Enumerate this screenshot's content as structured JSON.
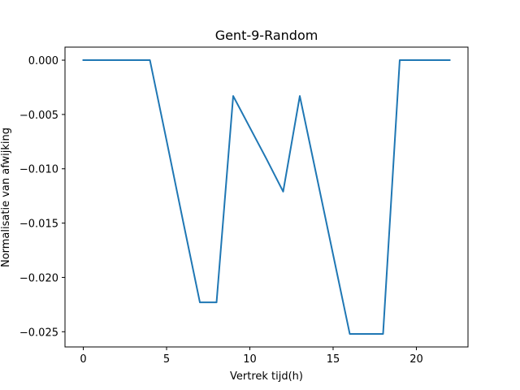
{
  "chart_data": {
    "type": "line",
    "title": "Gent-9-Random",
    "xlabel": "Vertrek tijd(h)",
    "ylabel": "Normalisatie van afwijking",
    "xlim": [
      -1.1,
      23.1
    ],
    "ylim": [
      -0.0264,
      0.0012
    ],
    "xticks": [
      0,
      5,
      10,
      15,
      20
    ],
    "xtick_labels": [
      "0",
      "5",
      "10",
      "15",
      "20"
    ],
    "yticks": [
      0.0,
      -0.005,
      -0.01,
      -0.015,
      -0.02,
      -0.025
    ],
    "ytick_labels": [
      "0.000",
      "−0.005",
      "−0.010",
      "−0.015",
      "−0.020",
      "−0.025"
    ],
    "grid": false,
    "series": [
      {
        "color": "#1f77b4",
        "x": [
          0,
          1,
          2,
          3,
          4,
          5,
          6,
          7,
          8,
          9,
          10,
          11,
          12,
          13,
          14,
          15,
          16,
          17,
          18,
          19,
          20,
          21,
          22
        ],
        "y": [
          0.0,
          0.0,
          0.0,
          0.0,
          0.0,
          -0.0074,
          -0.0149,
          -0.0223,
          -0.0223,
          -0.0033,
          -0.0062,
          -0.0091,
          -0.0121,
          -0.0033,
          -0.0106,
          -0.0179,
          -0.0252,
          -0.0252,
          -0.0252,
          0.0,
          0.0,
          0.0,
          0.0
        ]
      }
    ]
  }
}
